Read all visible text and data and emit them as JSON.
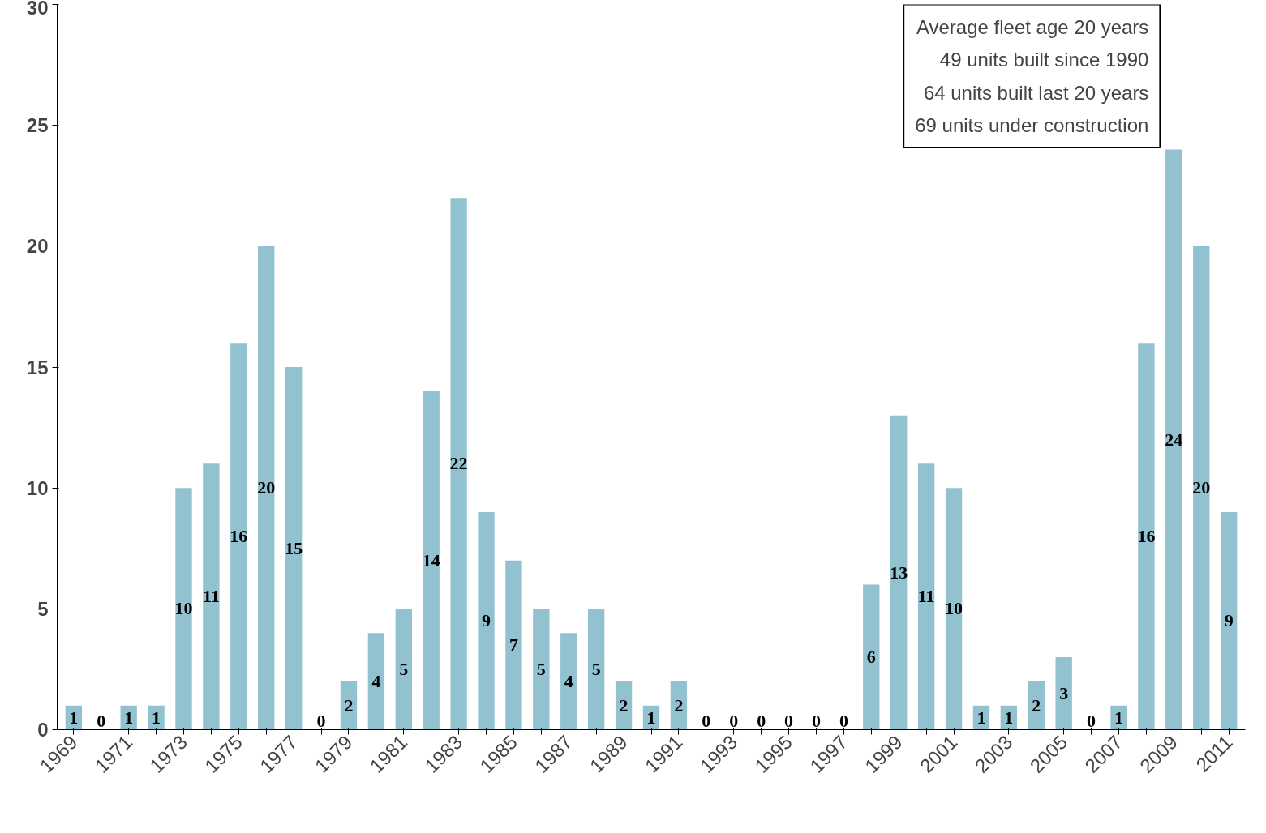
{
  "chart_data": {
    "type": "bar",
    "categories": [
      "1969",
      null,
      "1971",
      null,
      "1973",
      null,
      "1975",
      null,
      "1977",
      null,
      "1979",
      null,
      "1981",
      null,
      "1983",
      null,
      "1985",
      null,
      "1987",
      null,
      "1989",
      null,
      "1991",
      null,
      "1993",
      null,
      "1995",
      null,
      "1997",
      null,
      "1999",
      null,
      "2001",
      null,
      "2003",
      null,
      "2005",
      null,
      "2007",
      null,
      "2009",
      null,
      "2011"
    ],
    "values": [
      1,
      0,
      1,
      1,
      10,
      11,
      16,
      20,
      15,
      0,
      2,
      4,
      5,
      14,
      22,
      9,
      7,
      5,
      4,
      5,
      2,
      1,
      2,
      0,
      0,
      0,
      0,
      0,
      0,
      6,
      13,
      11,
      10,
      1,
      1,
      2,
      3,
      0,
      1,
      16,
      24,
      20,
      9
    ],
    "color": "#92c1cf",
    "ylim": [
      0,
      30
    ],
    "yticks": [
      0,
      5,
      10,
      15,
      20,
      25,
      30
    ],
    "data_labels": true,
    "grid": false,
    "annotations": [
      "Average fleet age 20 years",
      "49 units built since 1990",
      "64 units built last 20 years",
      "69 units under construction"
    ]
  }
}
